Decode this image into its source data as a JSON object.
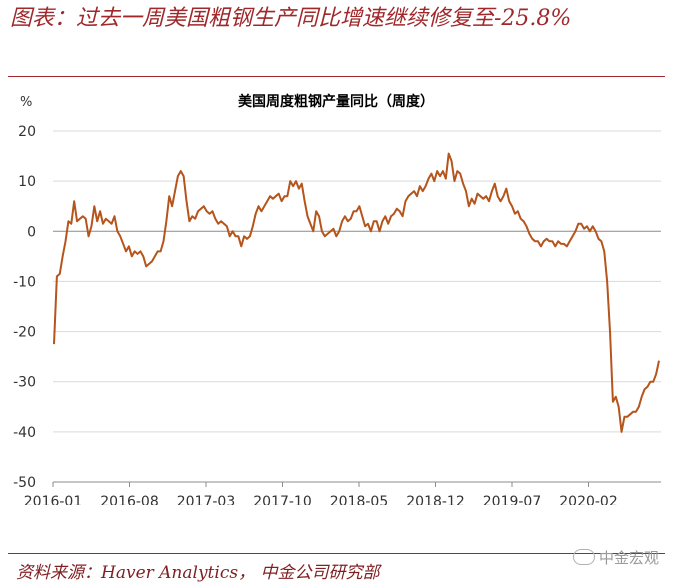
{
  "header": {
    "figure_title": "图表：过去一周美国粗钢生产同比增速继续修复至-25.8%"
  },
  "footer": {
    "source": "资料来源：Haver Analytics， 中金公司研究部",
    "watermark": "中金宏观"
  },
  "colors": {
    "accent": "#a0282b",
    "line": "#b5541b",
    "grid": "#d9d9d9",
    "axis": "#8c8c8c"
  },
  "chart_data": {
    "type": "line",
    "title": "美国周度粗钢产量同比（周度）",
    "ylabel": "%",
    "xlabel": "",
    "ylim": [
      -50,
      20
    ],
    "yticks": [
      20,
      10,
      0,
      -10,
      -20,
      -30,
      -40,
      -50
    ],
    "xticks": [
      "2016-01",
      "2016-08",
      "2017-03",
      "2017-10",
      "2018-05",
      "2018-12",
      "2019-07",
      "2020-02"
    ],
    "grid": "horizontal",
    "series": [
      {
        "values": [
          -22.5,
          -9,
          -8.5,
          -5,
          -2,
          2,
          1.5,
          6,
          2,
          2.5,
          3,
          2.5,
          -1,
          1,
          5,
          2,
          4,
          1.5,
          2.5,
          2,
          1.5,
          3,
          0,
          -1,
          -2.5,
          -4,
          -3,
          -5,
          -4,
          -4.5,
          -4,
          -5,
          -7,
          -6.5,
          -6,
          -5,
          -4,
          -4,
          -2,
          2,
          7,
          5,
          8,
          11,
          12,
          11,
          6,
          2,
          3,
          2.5,
          4,
          4.5,
          5,
          4,
          3.5,
          4,
          2.5,
          1.5,
          2,
          1.5,
          1,
          -1,
          0,
          -1,
          -1,
          -3,
          -1,
          -1.5,
          -1,
          1,
          3.5,
          5,
          4,
          5,
          6,
          7,
          6.5,
          7,
          7.5,
          6,
          7,
          7,
          10,
          9,
          10,
          8.5,
          9.5,
          6,
          3,
          1.5,
          0,
          4,
          3,
          0,
          -1,
          -0.5,
          0,
          0.5,
          -1,
          0,
          2,
          3,
          2,
          2.5,
          4,
          4,
          5,
          3,
          1,
          1.5,
          0,
          2,
          2,
          0,
          2,
          3,
          1.5,
          3,
          3.5,
          4.5,
          4,
          3,
          6,
          7,
          7.5,
          8,
          7,
          9,
          8,
          9,
          10.5,
          11.5,
          10,
          12,
          11,
          12,
          10.5,
          15.5,
          14,
          10,
          12,
          11.5,
          9.5,
          8,
          5,
          6.5,
          5.5,
          7.5,
          7,
          6.5,
          7,
          6,
          8,
          9.5,
          7,
          6,
          7,
          8.5,
          6,
          5,
          3.5,
          4,
          2.5,
          2,
          1,
          -0.5,
          -1.5,
          -2,
          -2,
          -3,
          -2,
          -1.5,
          -2,
          -2,
          -3,
          -2,
          -2.5,
          -2.5,
          -3,
          -2,
          -1,
          0,
          1.5,
          1.5,
          0.5,
          1,
          0,
          1,
          0,
          -1.5,
          -2,
          -4,
          -10,
          -20,
          -34,
          -33,
          -35,
          -40,
          -37,
          -37,
          -36.5,
          -36,
          -36,
          -35,
          -33,
          -31.5,
          -31,
          -30,
          -30,
          -28.5,
          -25.8
        ]
      }
    ]
  }
}
